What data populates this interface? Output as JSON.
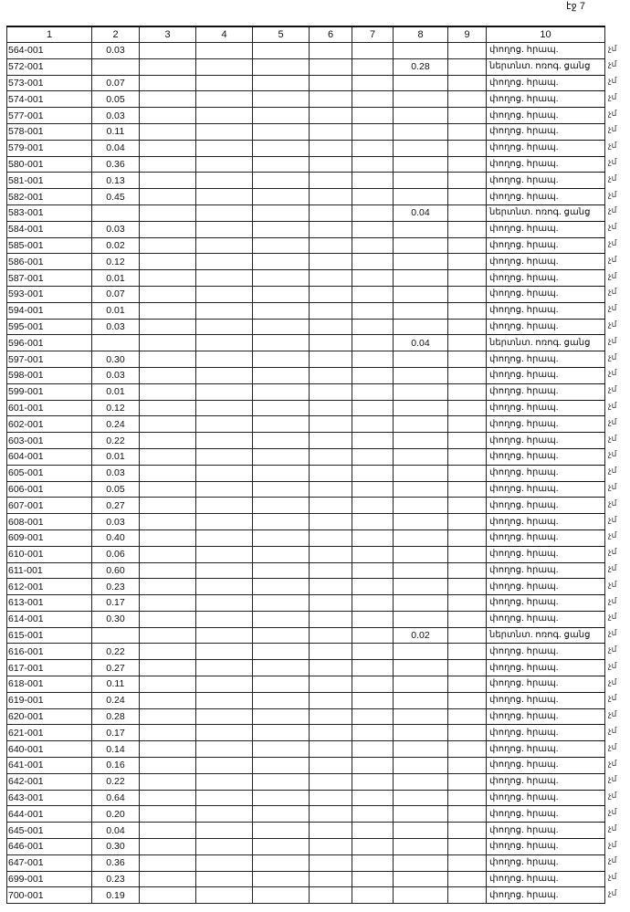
{
  "page_label": "էջ 7",
  "headers": [
    "1",
    "2",
    "3",
    "4",
    "5",
    "6",
    "7",
    "8",
    "9",
    "10"
  ],
  "margin_mark": "չմ",
  "rows": [
    {
      "id": "564-001",
      "c2": "0.03",
      "c8": "",
      "c10": "փողոց. հրապ."
    },
    {
      "id": "572-001",
      "c2": "",
      "c8": "0.28",
      "c10": "ներտնտ. ոռոգ. ցանց"
    },
    {
      "id": "573-001",
      "c2": "0.07",
      "c8": "",
      "c10": "փողոց. հրապ."
    },
    {
      "id": "574-001",
      "c2": "0.05",
      "c8": "",
      "c10": "փողոց. հրապ."
    },
    {
      "id": "577-001",
      "c2": "0.03",
      "c8": "",
      "c10": "փողոց. հրապ."
    },
    {
      "id": "578-001",
      "c2": "0.11",
      "c8": "",
      "c10": "փողոց. հրապ."
    },
    {
      "id": "579-001",
      "c2": "0.04",
      "c8": "",
      "c10": "փողոց. հրապ."
    },
    {
      "id": "580-001",
      "c2": "0.36",
      "c8": "",
      "c10": "փողոց. հրապ."
    },
    {
      "id": "581-001",
      "c2": "0.13",
      "c8": "",
      "c10": "փողոց. հրապ."
    },
    {
      "id": "582-001",
      "c2": "0.45",
      "c8": "",
      "c10": "փողոց. հրապ."
    },
    {
      "id": "583-001",
      "c2": "",
      "c8": "0.04",
      "c10": "ներտնտ. ոռոգ. ցանց"
    },
    {
      "id": "584-001",
      "c2": "0.03",
      "c8": "",
      "c10": "փողոց. հրապ."
    },
    {
      "id": "585-001",
      "c2": "0.02",
      "c8": "",
      "c10": "փողոց. հրապ."
    },
    {
      "id": "586-001",
      "c2": "0.12",
      "c8": "",
      "c10": "փողոց. հրապ."
    },
    {
      "id": "587-001",
      "c2": "0.01",
      "c8": "",
      "c10": "փողոց. հրապ."
    },
    {
      "id": "593-001",
      "c2": "0.07",
      "c8": "",
      "c10": "փողոց. հրապ."
    },
    {
      "id": "594-001",
      "c2": "0.01",
      "c8": "",
      "c10": "փողոց. հրապ."
    },
    {
      "id": "595-001",
      "c2": "0.03",
      "c8": "",
      "c10": "փողոց. հրապ."
    },
    {
      "id": "596-001",
      "c2": "",
      "c8": "0.04",
      "c10": "ներտնտ. ոռոգ. ցանց"
    },
    {
      "id": "597-001",
      "c2": "0.30",
      "c8": "",
      "c10": "փողոց. հրապ."
    },
    {
      "id": "598-001",
      "c2": "0.03",
      "c8": "",
      "c10": "փողոց. հրապ."
    },
    {
      "id": "599-001",
      "c2": "0.01",
      "c8": "",
      "c10": "փողոց. հրապ."
    },
    {
      "id": "601-001",
      "c2": "0.12",
      "c8": "",
      "c10": "փողոց. հրապ."
    },
    {
      "id": "602-001",
      "c2": "0.24",
      "c8": "",
      "c10": "փողոց. հրապ."
    },
    {
      "id": "603-001",
      "c2": "0.22",
      "c8": "",
      "c10": "փողոց. հրապ."
    },
    {
      "id": "604-001",
      "c2": "0.01",
      "c8": "",
      "c10": "փողոց. հրապ."
    },
    {
      "id": "605-001",
      "c2": "0.03",
      "c8": "",
      "c10": "փողոց. հրապ."
    },
    {
      "id": "606-001",
      "c2": "0.05",
      "c8": "",
      "c10": "փողոց. հրապ."
    },
    {
      "id": "607-001",
      "c2": "0.27",
      "c8": "",
      "c10": "փողոց. հրապ."
    },
    {
      "id": "608-001",
      "c2": "0.03",
      "c8": "",
      "c10": "փողոց. հրապ."
    },
    {
      "id": "609-001",
      "c2": "0.40",
      "c8": "",
      "c10": "փողոց. հրապ."
    },
    {
      "id": "610-001",
      "c2": "0.06",
      "c8": "",
      "c10": "փողոց. հրապ."
    },
    {
      "id": "611-001",
      "c2": "0.60",
      "c8": "",
      "c10": "փողոց. հրապ."
    },
    {
      "id": "612-001",
      "c2": "0.23",
      "c8": "",
      "c10": "փողոց. հրապ."
    },
    {
      "id": "613-001",
      "c2": "0.17",
      "c8": "",
      "c10": "փողոց. հրապ."
    },
    {
      "id": "614-001",
      "c2": "0.30",
      "c8": "",
      "c10": "փողոց. հրապ."
    },
    {
      "id": "615-001",
      "c2": "",
      "c8": "0.02",
      "c10": "ներտնտ. ոռոգ. ցանց"
    },
    {
      "id": "616-001",
      "c2": "0.22",
      "c8": "",
      "c10": "փողոց. հրապ."
    },
    {
      "id": "617-001",
      "c2": "0.27",
      "c8": "",
      "c10": "փողոց. հրապ."
    },
    {
      "id": "618-001",
      "c2": "0.11",
      "c8": "",
      "c10": "փողոց. հրապ."
    },
    {
      "id": "619-001",
      "c2": "0.24",
      "c8": "",
      "c10": "փողոց. հրապ."
    },
    {
      "id": "620-001",
      "c2": "0.28",
      "c8": "",
      "c10": "փողոց. հրապ."
    },
    {
      "id": "621-001",
      "c2": "0.17",
      "c8": "",
      "c10": "փողոց. հրապ."
    },
    {
      "id": "640-001",
      "c2": "0.14",
      "c8": "",
      "c10": "փողոց. հրապ."
    },
    {
      "id": "641-001",
      "c2": "0.16",
      "c8": "",
      "c10": "փողոց. հրապ."
    },
    {
      "id": "642-001",
      "c2": "0.22",
      "c8": "",
      "c10": "փողոց. հրապ."
    },
    {
      "id": "643-001",
      "c2": "0.64",
      "c8": "",
      "c10": "փողոց. հրապ."
    },
    {
      "id": "644-001",
      "c2": "0.20",
      "c8": "",
      "c10": "փողոց. հրապ."
    },
    {
      "id": "645-001",
      "c2": "0.04",
      "c8": "",
      "c10": "փողոց. հրապ."
    },
    {
      "id": "646-001",
      "c2": "0.30",
      "c8": "",
      "c10": "փողոց. հրապ."
    },
    {
      "id": "647-001",
      "c2": "0.36",
      "c8": "",
      "c10": "փողոց. հրապ."
    },
    {
      "id": "699-001",
      "c2": "0.23",
      "c8": "",
      "c10": "փողոց. հրապ."
    },
    {
      "id": "700-001",
      "c2": "0.19",
      "c8": "",
      "c10": "փողոց. հրապ."
    }
  ]
}
